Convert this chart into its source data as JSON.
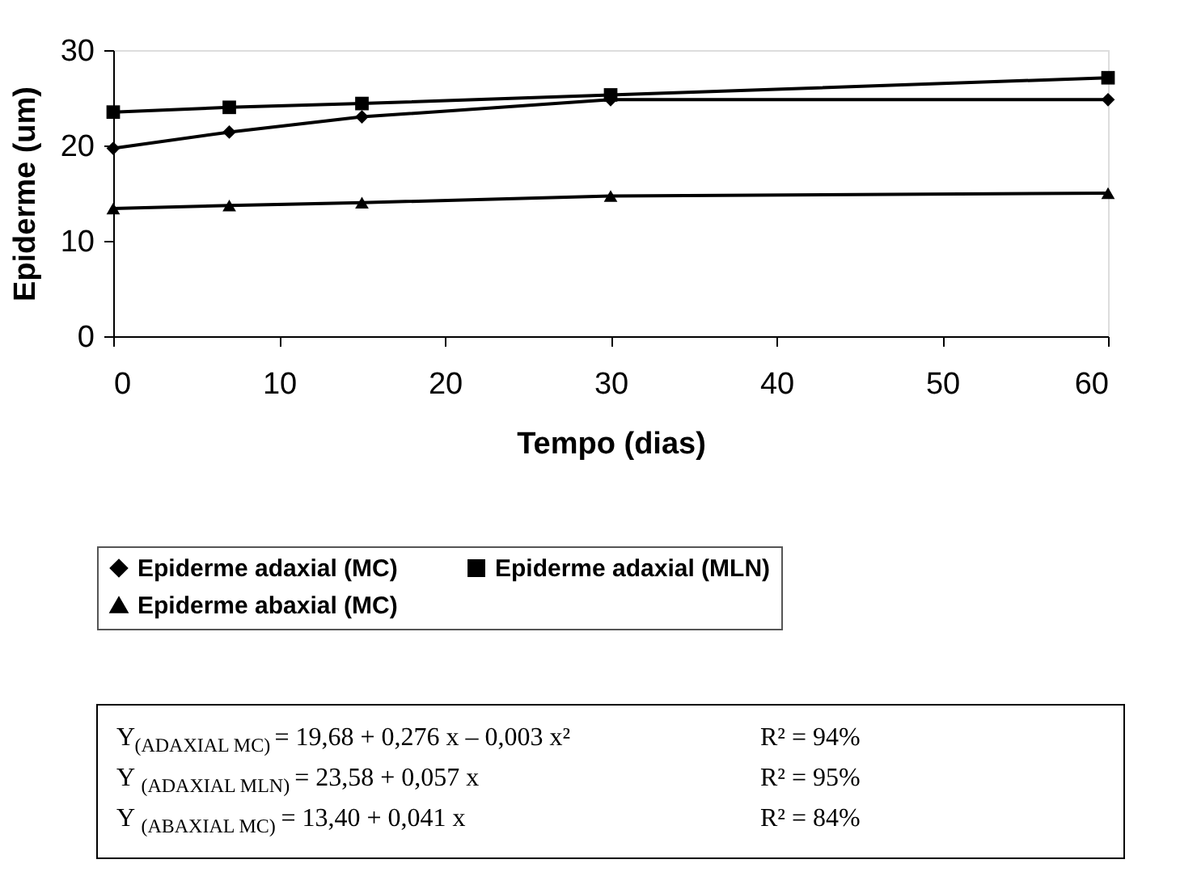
{
  "chart_data": {
    "type": "line",
    "xlabel": "Tempo (dias)",
    "ylabel": "Epiderme (um)",
    "x": [
      0,
      7,
      15,
      30,
      60
    ],
    "series": [
      {
        "name": "Epiderme adaxial (MC)",
        "color": "#000000",
        "marker": "diamond",
        "values": [
          19.7,
          21.4,
          23.0,
          24.8,
          24.8
        ]
      },
      {
        "name": "Epiderme adaxial (MLN)",
        "color": "#000000",
        "marker": "square",
        "values": [
          23.5,
          24.0,
          24.4,
          25.3,
          27.1
        ]
      },
      {
        "name": "Epiderme abaxial (MC)",
        "color": "#000000",
        "marker": "triangle",
        "values": [
          13.4,
          13.7,
          14.0,
          14.7,
          15.0
        ]
      }
    ],
    "xlim": [
      0,
      60
    ],
    "xticks": [
      0,
      10,
      20,
      30,
      40,
      50,
      60
    ],
    "ylim": [
      0,
      30
    ],
    "yticks": [
      0,
      10,
      20,
      30
    ],
    "grid": false,
    "legend": "bottom",
    "line_style": "solid",
    "annotations": [
      "Y$_{(ADAXIAL MC)}$ = 19,68 + 0,276 x – 0,003 x²",
      "R² = 94%",
      "Y $_{(ADAXIAL MLN)}$ = 23,58 + 0,057 x",
      "R² = 95%",
      "Y $_{(ABAXIAL MC)}$ = 13,40 + 0,041 x",
      "R² = 84%"
    ]
  }
}
